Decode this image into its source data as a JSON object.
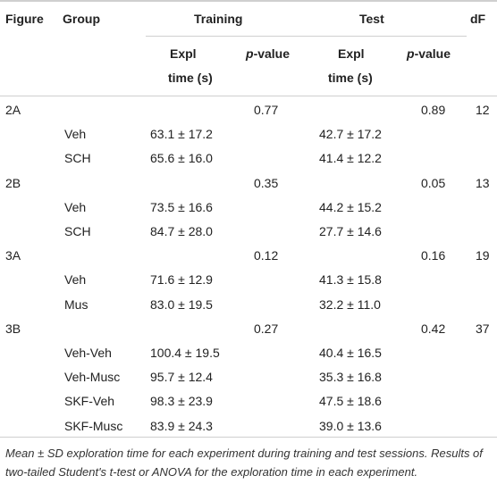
{
  "headers": {
    "figure": "Figure",
    "group": "Group",
    "training": "Training",
    "test": "Test",
    "df": "dF",
    "expl_line1": "Expl",
    "expl_line2": "time (s)",
    "p_italic": "p",
    "p_rest": "-value"
  },
  "rows": [
    {
      "figure": "2A",
      "group": "",
      "train_expl": "",
      "train_p": "0.77",
      "test_expl": "",
      "test_p": "0.89",
      "df": "12"
    },
    {
      "figure": "",
      "group": "Veh",
      "train_expl": "63.1 ± 17.2",
      "train_p": "",
      "test_expl": "42.7 ± 17.2",
      "test_p": "",
      "df": ""
    },
    {
      "figure": "",
      "group": "SCH",
      "train_expl": "65.6 ± 16.0",
      "train_p": "",
      "test_expl": "41.4 ± 12.2",
      "test_p": "",
      "df": ""
    },
    {
      "figure": "2B",
      "group": "",
      "train_expl": "",
      "train_p": "0.35",
      "test_expl": "",
      "test_p": "0.05",
      "df": "13"
    },
    {
      "figure": "",
      "group": "Veh",
      "train_expl": "73.5 ± 16.6",
      "train_p": "",
      "test_expl": "44.2 ± 15.2",
      "test_p": "",
      "df": ""
    },
    {
      "figure": "",
      "group": "SCH",
      "train_expl": "84.7 ± 28.0",
      "train_p": "",
      "test_expl": "27.7 ± 14.6",
      "test_p": "",
      "df": ""
    },
    {
      "figure": "3A",
      "group": "",
      "train_expl": "",
      "train_p": "0.12",
      "test_expl": "",
      "test_p": "0.16",
      "df": "19"
    },
    {
      "figure": "",
      "group": "Veh",
      "train_expl": "71.6 ± 12.9",
      "train_p": "",
      "test_expl": "41.3 ± 15.8",
      "test_p": "",
      "df": ""
    },
    {
      "figure": "",
      "group": "Mus",
      "train_expl": "83.0 ± 19.5",
      "train_p": "",
      "test_expl": "32.2 ± 11.0",
      "test_p": "",
      "df": ""
    },
    {
      "figure": "3B",
      "group": "",
      "train_expl": "",
      "train_p": "0.27",
      "test_expl": "",
      "test_p": "0.42",
      "df": "37"
    },
    {
      "figure": "",
      "group": "Veh-Veh",
      "train_expl": "100.4 ± 19.5",
      "train_p": "",
      "test_expl": "40.4 ± 16.5",
      "test_p": "",
      "df": ""
    },
    {
      "figure": "",
      "group": "Veh-Musc",
      "train_expl": "95.7 ± 12.4",
      "train_p": "",
      "test_expl": "35.3 ± 16.8",
      "test_p": "",
      "df": ""
    },
    {
      "figure": "",
      "group": "SKF-Veh",
      "train_expl": "98.3 ± 23.9",
      "train_p": "",
      "test_expl": "47.5 ± 18.6",
      "test_p": "",
      "df": ""
    },
    {
      "figure": "",
      "group": "SKF-Musc",
      "train_expl": "83.9 ± 24.3",
      "train_p": "",
      "test_expl": "39.0 ± 13.6",
      "test_p": "",
      "df": ""
    }
  ],
  "caption": "Mean ± SD exploration time for each experiment during training and test sessions. Results of two-tailed Student's t-test or ANOVA for the exploration time in each experiment."
}
